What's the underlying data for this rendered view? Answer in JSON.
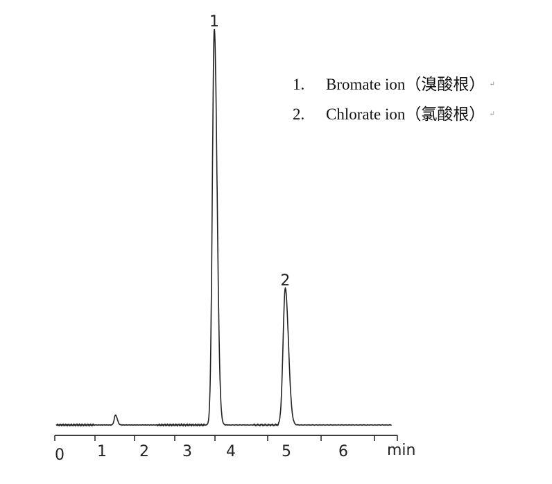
{
  "chart_data": {
    "type": "line",
    "xlabel": "min",
    "x_ticks": [
      "0",
      "1",
      "2",
      "3",
      "4",
      "5",
      "6"
    ],
    "xlim": [
      0,
      6.85
    ],
    "y_axis_shown": false,
    "grid": false,
    "line_color": "#222222",
    "peaks": [
      {
        "label": "1",
        "retention_time_min": 3.62,
        "relative_height": 100
      },
      {
        "label": "2",
        "retention_time_min": 4.98,
        "relative_height": 34.6
      },
      {
        "label": "",
        "retention_time_min": 1.32,
        "relative_height": 2.5
      }
    ],
    "legend": {
      "placement": "top-right",
      "entries": [
        {
          "num": "1.",
          "name": "Bromate ion（溴酸根）"
        },
        {
          "num": "2.",
          "name": "Chlorate ion（氯酸根）"
        }
      ]
    }
  }
}
